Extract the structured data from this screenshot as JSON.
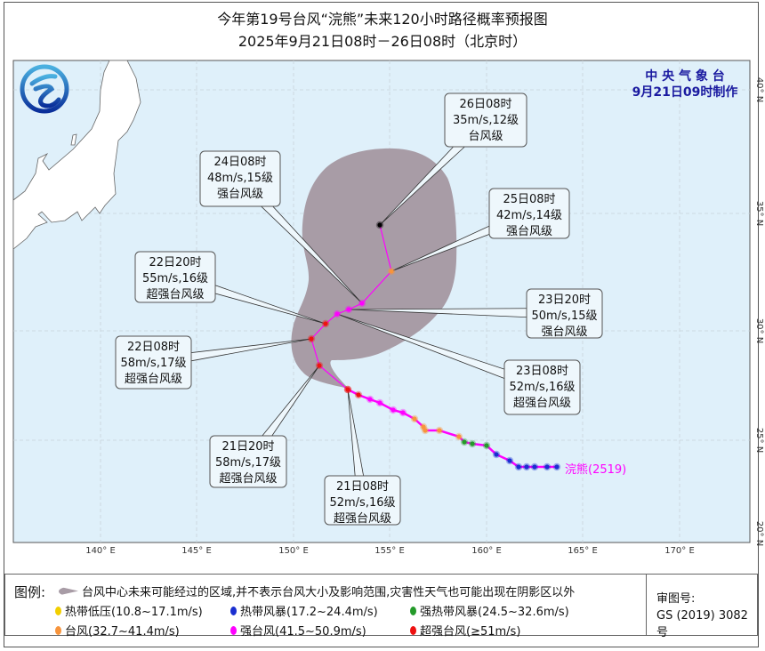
{
  "title": {
    "line1": "今年第19号台风“浣熊”未来120小时路径概率预报图",
    "line2": "2025年9月21日08时－26日08时（北京时）"
  },
  "agency": {
    "name": "中 央 气 象 台",
    "issued": "9月21日09时制作"
  },
  "typhoon_label": "浣熊(2519)",
  "lat_labels": [
    "40° N",
    "35° N",
    "30° N",
    "25° N",
    "20° N"
  ],
  "lon_labels": [
    "140° E",
    "145° E",
    "150° E",
    "155° E",
    "160° E",
    "165° E",
    "170° E"
  ],
  "callouts": [
    {
      "time": "26日08时",
      "wind": "35m/s,12级",
      "level": "台风级"
    },
    {
      "time": "24日08时",
      "wind": "48m/s,15级",
      "level": "强台风级"
    },
    {
      "time": "25日08时",
      "wind": "42m/s,14级",
      "level": "强台风级"
    },
    {
      "time": "22日20时",
      "wind": "55m/s,16级",
      "level": "超强台风级"
    },
    {
      "time": "23日20时",
      "wind": "50m/s,15级",
      "level": "强台风级"
    },
    {
      "time": "22日08时",
      "wind": "58m/s,17级",
      "level": "超强台风级"
    },
    {
      "time": "23日08时",
      "wind": "52m/s,16级",
      "level": "超强台风级"
    },
    {
      "time": "21日20时",
      "wind": "58m/s,17级",
      "level": "超强台风级"
    },
    {
      "time": "21日08时",
      "wind": "52m/s,16级",
      "level": "超强台风级"
    }
  ],
  "track": {
    "observed_categories": [
      "TS",
      "TS",
      "TS",
      "TS",
      "TS",
      "TS",
      "TS",
      "STS",
      "STS",
      "STS",
      "TY",
      "TY",
      "TY",
      "TY",
      "TY",
      "STY",
      "STY",
      "STY",
      "STY",
      "SuperTY",
      "SuperTY"
    ],
    "forecast_categories": [
      "SuperTY",
      "SuperTY",
      "SuperTY",
      "SuperTY",
      "STY",
      "STY",
      "STY",
      "TY"
    ]
  },
  "colors": {
    "TD": "#f2cf00",
    "TS": "#1a2fd0",
    "STS": "#249a2a",
    "TY": "#f7943c",
    "STY": "#ff00ff",
    "SuperTY": "#ee1111",
    "ocean": "#dff0fa",
    "cone": "#a89ca6",
    "track": "#ff00ff",
    "agency": "#1a1aa0",
    "name_label": "#ff00ff"
  },
  "legend": {
    "title": "图例:",
    "cone_text": "台风中心未来可能经过的区域,并不表示台风大小及影响范围,灾害性天气也可能出现在阴影区以外",
    "items": [
      {
        "key": "TD",
        "label": "热带低压(10.8~17.1m/s)"
      },
      {
        "key": "TS",
        "label": "热带风暴(17.2~24.4m/s)"
      },
      {
        "key": "STS",
        "label": "强热带风暴(24.5~32.6m/s)"
      },
      {
        "key": "TY",
        "label": "台风(32.7~41.4m/s)"
      },
      {
        "key": "STY",
        "label": "强台风(41.5~50.9m/s)"
      },
      {
        "key": "SuperTY",
        "label": "超强台风(≥51m/s)"
      }
    ],
    "audit_label": "审图号:",
    "audit_no": "GS (2019) 3082号"
  }
}
